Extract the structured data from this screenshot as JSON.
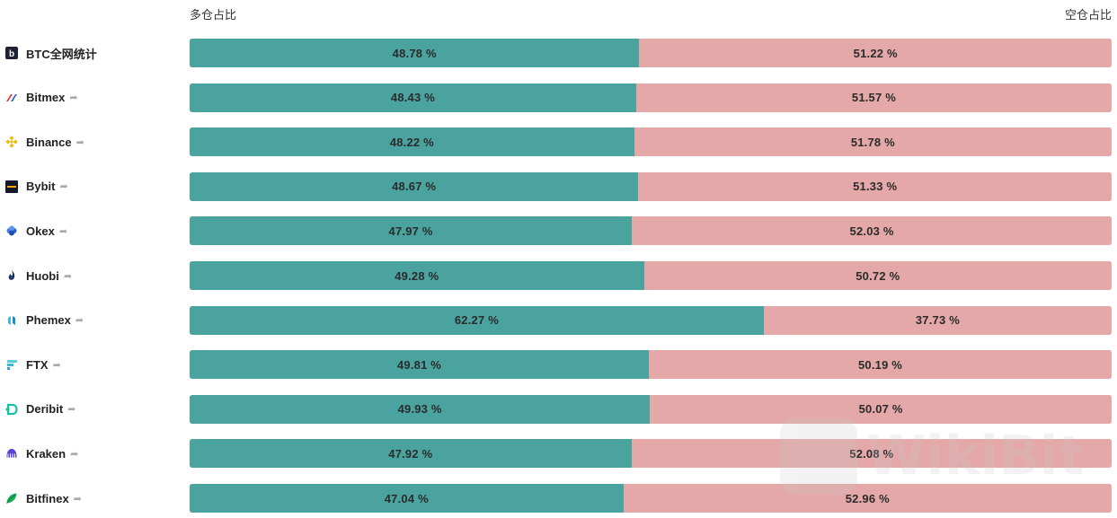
{
  "headers": {
    "long": "多仓占比",
    "short": "空仓占比"
  },
  "colors": {
    "long": "#4aa39f",
    "short": "#e3a8a7"
  },
  "watermark": "WikiBit",
  "chart_data": {
    "type": "bar",
    "orientation": "horizontal",
    "stacked": true,
    "normalized_to": 100,
    "categories": [
      "BTC全网统计",
      "Bitmex",
      "Binance",
      "Bybit",
      "Okex",
      "Huobi",
      "Phemex",
      "FTX",
      "Deribit",
      "Kraken",
      "Bitfinex"
    ],
    "series": [
      {
        "name": "多仓占比",
        "color": "#4aa39f",
        "values": [
          48.78,
          48.43,
          48.22,
          48.67,
          47.97,
          49.28,
          62.27,
          49.81,
          49.93,
          47.92,
          47.04
        ]
      },
      {
        "name": "空仓占比",
        "color": "#e3a8a7",
        "values": [
          51.22,
          51.57,
          51.78,
          51.33,
          52.03,
          50.72,
          37.73,
          50.19,
          50.07,
          52.08,
          52.96
        ]
      }
    ],
    "value_suffix": " %",
    "title": "",
    "xlabel": "",
    "ylabel": ""
  },
  "rows": [
    {
      "name": "BTC全网统计",
      "icon": "btc-b-icon",
      "long": "48.78 %",
      "short": "51.22 %",
      "has_link": false
    },
    {
      "name": "Bitmex",
      "icon": "bitmex-icon",
      "long": "48.43 %",
      "short": "51.57 %",
      "has_link": true
    },
    {
      "name": "Binance",
      "icon": "binance-icon",
      "long": "48.22 %",
      "short": "51.78 %",
      "has_link": true
    },
    {
      "name": "Bybit",
      "icon": "bybit-icon",
      "long": "48.67 %",
      "short": "51.33 %",
      "has_link": true
    },
    {
      "name": "Okex",
      "icon": "okex-icon",
      "long": "47.97 %",
      "short": "52.03 %",
      "has_link": true
    },
    {
      "name": "Huobi",
      "icon": "huobi-icon",
      "long": "49.28 %",
      "short": "50.72 %",
      "has_link": true
    },
    {
      "name": "Phemex",
      "icon": "phemex-icon",
      "long": "62.27 %",
      "short": "37.73 %",
      "has_link": true
    },
    {
      "name": "FTX",
      "icon": "ftx-icon",
      "long": "49.81 %",
      "short": "50.19 %",
      "has_link": true
    },
    {
      "name": "Deribit",
      "icon": "deribit-icon",
      "long": "49.93 %",
      "short": "50.07 %",
      "has_link": true
    },
    {
      "name": "Kraken",
      "icon": "kraken-icon",
      "long": "47.92 %",
      "short": "52.08 %",
      "has_link": true
    },
    {
      "name": "Bitfinex",
      "icon": "bitfinex-icon",
      "long": "47.04 %",
      "short": "52.96 %",
      "has_link": true
    }
  ]
}
